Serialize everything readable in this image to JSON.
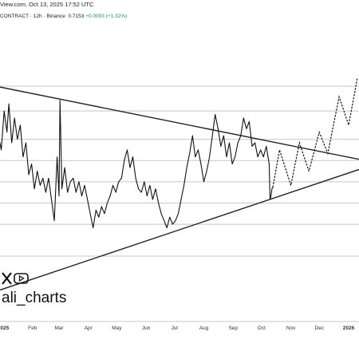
{
  "header": {
    "top_line": "View.com, Oct 13, 2025 17:52 UTC",
    "symbol": "CONTRACT · 12h · Binance",
    "price": "0.7153",
    "change": "+0.0093 (+1.32%)"
  },
  "watermark": {
    "handle": "ali_charts",
    "icons": [
      "x-logo-icon",
      "youtube-icon"
    ]
  },
  "colors": {
    "background": "#ffffff",
    "price_line": "#111111",
    "grid": "#c8c8c8",
    "trendline": "#222222",
    "change_positive": "#1a9c62"
  },
  "chart_data": {
    "type": "line",
    "x_axis": {
      "ticks": [
        "2025",
        "Feb",
        "Mar",
        "Apr",
        "May",
        "Jun",
        "Jul",
        "Aug",
        "Sep",
        "Oct",
        "Nov",
        "Dec",
        "2026"
      ],
      "bold_ticks": [
        "2025",
        "2026"
      ]
    },
    "y_scale": "price (unlabeled in view)",
    "horizontal_levels": [
      1.0,
      0.93,
      0.85,
      0.79,
      0.73,
      0.67,
      0.61,
      0.52
    ],
    "series": [
      {
        "kind": "price",
        "points": [
          [
            "2024-12-24",
            0.9
          ],
          [
            "2024-12-27",
            0.86
          ],
          [
            "2024-12-30",
            0.82
          ],
          [
            "2025-01-02",
            0.93
          ],
          [
            "2025-01-05",
            0.87
          ],
          [
            "2025-01-07",
            0.95
          ],
          [
            "2025-01-10",
            0.84
          ],
          [
            "2025-01-13",
            0.91
          ],
          [
            "2025-01-16",
            0.85
          ],
          [
            "2025-01-19",
            0.89
          ],
          [
            "2025-01-22",
            0.8
          ],
          [
            "2025-01-25",
            0.84
          ],
          [
            "2025-01-28",
            0.75
          ],
          [
            "2025-01-31",
            0.78
          ],
          [
            "2025-02-03",
            0.71
          ],
          [
            "2025-02-06",
            0.76
          ],
          [
            "2025-02-09",
            0.72
          ],
          [
            "2025-02-12",
            0.74
          ],
          [
            "2025-02-15",
            0.7
          ],
          [
            "2025-02-18",
            0.74
          ],
          [
            "2025-02-21",
            0.68
          ],
          [
            "2025-02-24",
            0.62
          ],
          [
            "2025-02-27",
            0.8
          ],
          [
            "2025-03-01",
            0.69
          ],
          [
            "2025-03-02",
            0.96
          ],
          [
            "2025-03-04",
            0.71
          ],
          [
            "2025-03-07",
            0.77
          ],
          [
            "2025-03-10",
            0.7
          ],
          [
            "2025-03-13",
            0.73
          ],
          [
            "2025-03-16",
            0.74
          ],
          [
            "2025-03-19",
            0.7
          ],
          [
            "2025-03-22",
            0.73
          ],
          [
            "2025-03-25",
            0.69
          ],
          [
            "2025-03-28",
            0.72
          ],
          [
            "2025-03-31",
            0.68
          ],
          [
            "2025-04-03",
            0.64
          ],
          [
            "2025-04-06",
            0.6
          ],
          [
            "2025-04-09",
            0.65
          ],
          [
            "2025-04-12",
            0.63
          ],
          [
            "2025-04-15",
            0.66
          ],
          [
            "2025-04-18",
            0.64
          ],
          [
            "2025-04-21",
            0.67
          ],
          [
            "2025-04-24",
            0.69
          ],
          [
            "2025-04-27",
            0.72
          ],
          [
            "2025-04-30",
            0.7
          ],
          [
            "2025-05-03",
            0.73
          ],
          [
            "2025-05-06",
            0.74
          ],
          [
            "2025-05-09",
            0.79
          ],
          [
            "2025-05-12",
            0.82
          ],
          [
            "2025-05-15",
            0.77
          ],
          [
            "2025-05-18",
            0.8
          ],
          [
            "2025-05-21",
            0.74
          ],
          [
            "2025-05-24",
            0.71
          ],
          [
            "2025-05-27",
            0.7
          ],
          [
            "2025-05-30",
            0.73
          ],
          [
            "2025-06-02",
            0.69
          ],
          [
            "2025-06-05",
            0.72
          ],
          [
            "2025-06-08",
            0.68
          ],
          [
            "2025-06-11",
            0.71
          ],
          [
            "2025-06-14",
            0.67
          ],
          [
            "2025-06-17",
            0.64
          ],
          [
            "2025-06-20",
            0.62
          ],
          [
            "2025-06-23",
            0.6
          ],
          [
            "2025-06-26",
            0.63
          ],
          [
            "2025-06-29",
            0.61
          ],
          [
            "2025-07-02",
            0.62
          ],
          [
            "2025-07-05",
            0.64
          ],
          [
            "2025-07-08",
            0.68
          ],
          [
            "2025-07-11",
            0.72
          ],
          [
            "2025-07-14",
            0.77
          ],
          [
            "2025-07-17",
            0.81
          ],
          [
            "2025-07-20",
            0.86
          ],
          [
            "2025-07-23",
            0.8
          ],
          [
            "2025-07-26",
            0.82
          ],
          [
            "2025-07-29",
            0.78
          ],
          [
            "2025-08-01",
            0.73
          ],
          [
            "2025-08-04",
            0.76
          ],
          [
            "2025-08-07",
            0.8
          ],
          [
            "2025-08-10",
            0.86
          ],
          [
            "2025-08-13",
            0.92
          ],
          [
            "2025-08-16",
            0.88
          ],
          [
            "2025-08-19",
            0.83
          ],
          [
            "2025-08-22",
            0.86
          ],
          [
            "2025-08-25",
            0.8
          ],
          [
            "2025-08-28",
            0.84
          ],
          [
            "2025-08-31",
            0.78
          ],
          [
            "2025-09-03",
            0.8
          ],
          [
            "2025-09-06",
            0.84
          ],
          [
            "2025-09-09",
            0.86
          ],
          [
            "2025-09-12",
            0.91
          ],
          [
            "2025-09-15",
            0.88
          ],
          [
            "2025-09-18",
            0.9
          ],
          [
            "2025-09-21",
            0.83
          ],
          [
            "2025-09-24",
            0.84
          ],
          [
            "2025-09-27",
            0.8
          ],
          [
            "2025-09-30",
            0.82
          ],
          [
            "2025-10-03",
            0.8
          ],
          [
            "2025-10-06",
            0.83
          ],
          [
            "2025-10-09",
            0.78
          ],
          [
            "2025-10-10",
            0.68
          ],
          [
            "2025-10-11",
            0.69
          ],
          [
            "2025-10-12",
            0.71
          ],
          [
            "2025-10-13",
            0.7153
          ]
        ]
      },
      {
        "kind": "projection",
        "style": "dotted",
        "points": [
          [
            "2025-10-13",
            0.7153
          ],
          [
            "2025-10-20",
            0.82
          ],
          [
            "2025-11-01",
            0.72
          ],
          [
            "2025-11-10",
            0.84
          ],
          [
            "2025-11-20",
            0.76
          ],
          [
            "2025-12-01",
            0.87
          ],
          [
            "2025-12-10",
            0.81
          ],
          [
            "2025-12-22",
            0.97
          ],
          [
            "2026-01-01",
            0.89
          ],
          [
            "2026-01-10",
            1.02
          ]
        ]
      }
    ],
    "trendlines": [
      {
        "name": "upper",
        "points": [
          [
            "2024-12-24",
            1.0
          ],
          [
            "2026-01-18",
            0.79
          ]
        ]
      },
      {
        "name": "lower",
        "points": [
          [
            "2024-12-24",
            0.42
          ],
          [
            "2026-01-18",
            0.77
          ]
        ]
      }
    ],
    "grid": "horizontal only",
    "legend": "none"
  }
}
